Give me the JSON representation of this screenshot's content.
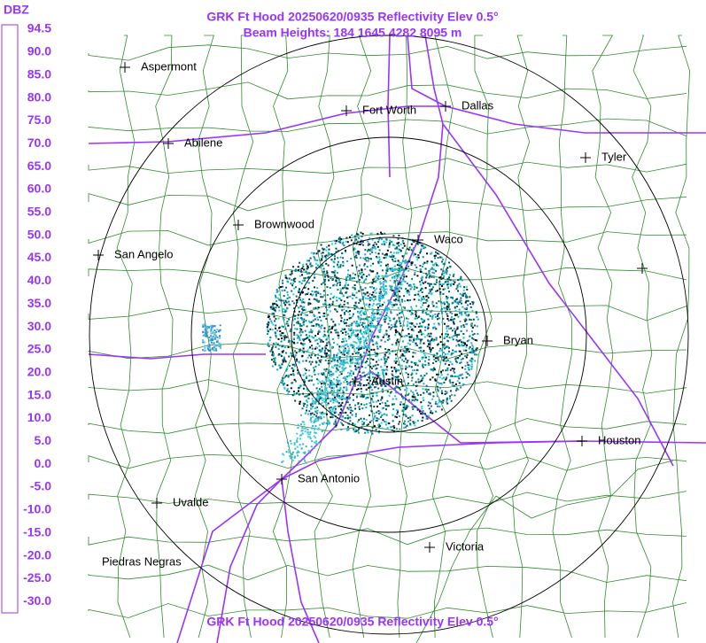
{
  "header": {
    "title": "GRK Ft Hood 20250620/0935 Reflectivity Elev 0.5°",
    "subtitle": "Beam Heights: 184 1645 4282 8095 m"
  },
  "footer": {
    "title": "GRK Ft Hood 20250620/0935 Reflectivity Elev 0.5°"
  },
  "legend": {
    "unit": "DBZ",
    "labels": [
      "94.5",
      "90.0",
      "85.0",
      "80.0",
      "75.0",
      "70.0",
      "65.0",
      "60.0",
      "55.0",
      "50.0",
      "45.0",
      "40.0",
      "35.0",
      "30.0",
      "25.0",
      "20.0",
      "15.0",
      "10.0",
      "5.0",
      "0.0",
      "-5.0",
      "-10.0",
      "-15.0",
      "-20.0",
      "-25.0",
      "-30.0"
    ]
  },
  "map": {
    "cities": [
      "Aspermont",
      "Fort Worth",
      "Dallas",
      "Abilene",
      "Tyler",
      "Brownwood",
      "Waco",
      "San Angelo",
      "Bryan",
      "Austin",
      "Houston",
      "San Antonio",
      "Uvalde",
      "Victoria",
      "Piedras Negras"
    ]
  }
}
